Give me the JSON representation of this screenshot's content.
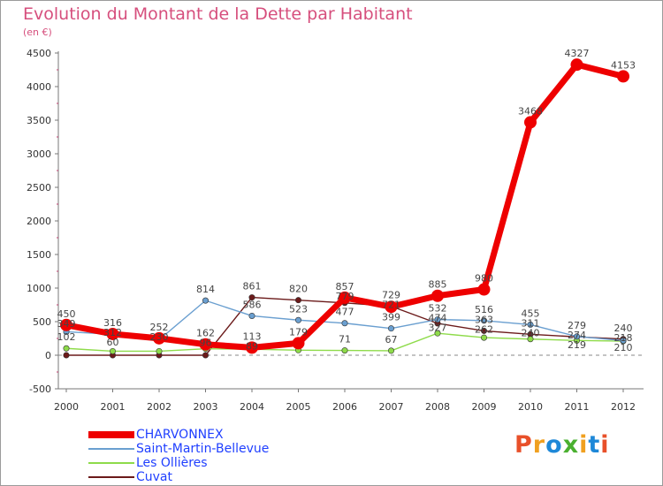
{
  "chart_data": {
    "type": "line",
    "title": "Evolution du Montant de la Dette par Habitant",
    "subtitle": "(en €)",
    "x": [
      "2000",
      "2001",
      "2002",
      "2003",
      "2004",
      "2005",
      "2006",
      "2007",
      "2008",
      "2009",
      "2010",
      "2011",
      "2012"
    ],
    "yticks": [
      "-500",
      "0",
      "500",
      "1000",
      "1500",
      "2000",
      "2500",
      "3000",
      "3500",
      "4000",
      "4500"
    ],
    "ylim": [
      -500,
      4500
    ],
    "grid": false,
    "legend_position": "bottom-left",
    "series": [
      {
        "name": "Cuvat",
        "color": "#6b1a1a",
        "values": [
          0,
          0,
          0,
          0,
          861,
          820,
          779,
          729,
          474,
          363,
          311,
          274,
          240
        ]
      },
      {
        "name": "Les Ollières",
        "color": "#8edb4a",
        "values": [
          102,
          60,
          60,
          96,
          89,
          75,
          71,
          67,
          327,
          262,
          240,
          219,
          210
        ]
      },
      {
        "name": "Saint-Martin-Bellevue",
        "color": "#6a9fd0",
        "values": [
          349,
          312,
          230,
          814,
          586,
          523,
          477,
          399,
          532,
          516,
          455,
          279,
          218
        ]
      },
      {
        "name": "CHARVONNEX",
        "color": "#ee0000",
        "values": [
          450,
          316,
          252,
          162,
          113,
          179,
          857,
          721,
          885,
          980,
          3468,
          4327,
          4153
        ]
      }
    ],
    "data_labels": [
      {
        "text": "450",
        "x": "2000",
        "y": 450
      },
      {
        "text": "349",
        "x": "2000",
        "y": 349
      },
      {
        "text": "102",
        "x": "2000",
        "y": 102
      },
      {
        "text": "312",
        "x": "2001",
        "y": 312
      },
      {
        "text": "316",
        "x": "2001",
        "y": 316
      },
      {
        "text": "60",
        "x": "2001",
        "y": 60
      },
      {
        "text": "230",
        "x": "2002",
        "y": 230
      },
      {
        "text": "252",
        "x": "2002",
        "y": 252
      },
      {
        "text": "814",
        "x": "2003",
        "y": 814
      },
      {
        "text": "162",
        "x": "2003",
        "y": 162
      },
      {
        "text": "96",
        "x": "2003",
        "y": 96
      },
      {
        "text": "861",
        "x": "2004",
        "y": 861
      },
      {
        "text": "586",
        "x": "2004",
        "y": 586
      },
      {
        "text": "113",
        "x": "2004",
        "y": 113
      },
      {
        "text": "89",
        "x": "2004",
        "y": 89
      },
      {
        "text": "820",
        "x": "2005",
        "y": 820
      },
      {
        "text": "523",
        "x": "2005",
        "y": 523
      },
      {
        "text": "179",
        "x": "2005",
        "y": 179
      },
      {
        "text": "857",
        "x": "2006",
        "y": 857
      },
      {
        "text": "779",
        "x": "2006",
        "y": 779
      },
      {
        "text": "477",
        "x": "2006",
        "y": 477
      },
      {
        "text": "71",
        "x": "2006",
        "y": 71
      },
      {
        "text": "729",
        "x": "2007",
        "y": 729
      },
      {
        "text": "721",
        "x": "2007",
        "y": 721
      },
      {
        "text": "399",
        "x": "2007",
        "y": 399
      },
      {
        "text": "67",
        "x": "2007",
        "y": 67
      },
      {
        "text": "885",
        "x": "2008",
        "y": 885
      },
      {
        "text": "532",
        "x": "2008",
        "y": 532
      },
      {
        "text": "474",
        "x": "2008",
        "y": 474
      },
      {
        "text": "327",
        "x": "2008",
        "y": 327
      },
      {
        "text": "980",
        "x": "2009",
        "y": 980
      },
      {
        "text": "516",
        "x": "2009",
        "y": 516
      },
      {
        "text": "363",
        "x": "2009",
        "y": 363
      },
      {
        "text": "262",
        "x": "2009",
        "y": 262
      },
      {
        "text": "3468",
        "x": "2010",
        "y": 3468
      },
      {
        "text": "455",
        "x": "2010",
        "y": 455
      },
      {
        "text": "311",
        "x": "2010",
        "y": 311
      },
      {
        "text": "240",
        "x": "2010",
        "y": 240
      },
      {
        "text": "4327",
        "x": "2011",
        "y": 4327
      },
      {
        "text": "279",
        "x": "2011",
        "y": 279
      },
      {
        "text": "274",
        "x": "2011",
        "y": 274
      },
      {
        "text": "219",
        "x": "2011",
        "y": 219
      },
      {
        "text": "4153",
        "x": "2012",
        "y": 4153
      },
      {
        "text": "240",
        "x": "2012",
        "y": 240
      },
      {
        "text": "218",
        "x": "2012",
        "y": 218
      },
      {
        "text": "210",
        "x": "2012",
        "y": 210
      }
    ],
    "legend": [
      {
        "label": "CHARVONNEX",
        "color": "#ee0000"
      },
      {
        "label": "Saint-Martin-Bellevue",
        "color": "#6a9fd0"
      },
      {
        "label": "Les Ollières",
        "color": "#8edb4a"
      },
      {
        "label": "Cuvat",
        "color": "#6b1a1a"
      }
    ]
  },
  "logo": {
    "text": "Proxiti",
    "colors": [
      "#e8502a",
      "#f0a020",
      "#1e88d8",
      "#4ab030",
      "#f0a020",
      "#1e88d8",
      "#e8502a"
    ]
  }
}
